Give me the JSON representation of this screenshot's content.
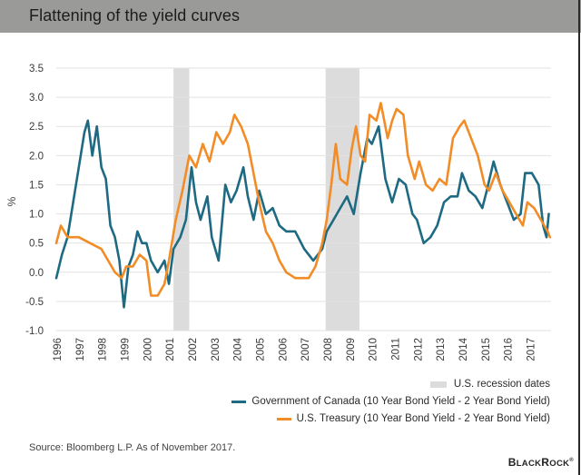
{
  "header": {
    "title": "Flattening of the yield curves"
  },
  "footer": {
    "source": "Source: Bloomberg L.P. As of November 2017.",
    "logo": "BlackRock"
  },
  "colors": {
    "canada": "#1d6a82",
    "us": "#f18c27",
    "recession": "#dcdcdc",
    "header_bg": "#9a9a99",
    "grid": "#e2e2e2"
  },
  "chart_data": {
    "type": "line",
    "title": "Flattening of the yield curves",
    "xlabel": "",
    "ylabel": "%",
    "ylim": [
      -1.0,
      3.5
    ],
    "xlim": [
      1996,
      2017.9
    ],
    "grid": true,
    "yticks": [
      "3.5",
      "3.0",
      "2.5",
      "2.0",
      "1.5",
      "1.0",
      "0.5",
      "0.0",
      "-0.5",
      "-1.0"
    ],
    "ytick_values": [
      3.5,
      3.0,
      2.5,
      2.0,
      1.5,
      1.0,
      0.5,
      0.0,
      -0.5,
      -1.0
    ],
    "xticks": [
      "1996",
      "1997",
      "1998",
      "1999",
      "2000",
      "2001",
      "2002",
      "2003",
      "2004",
      "2005",
      "2006",
      "2007",
      "2008",
      "2009",
      "2010",
      "2011",
      "2012",
      "2013",
      "2014",
      "2015",
      "2016",
      "2017"
    ],
    "legend_position": "bottom-right",
    "recessions": {
      "name": "U.S. recession dates",
      "periods": [
        [
          2001.2,
          2001.9
        ],
        [
          2007.95,
          2009.45
        ]
      ]
    },
    "series": [
      {
        "name": "Government of Canada (10 Year Bond Yield - 2 Year Bond Yield)",
        "color": "#1d6a82",
        "x": [
          1996.0,
          1996.25,
          1996.5,
          1996.75,
          1997.0,
          1997.25,
          1997.4,
          1997.6,
          1997.8,
          1998.0,
          1998.2,
          1998.4,
          1998.6,
          1998.8,
          1999.0,
          1999.2,
          1999.4,
          1999.6,
          1999.8,
          2000.0,
          2000.2,
          2000.5,
          2000.8,
          2001.0,
          2001.2,
          2001.5,
          2001.75,
          2002.0,
          2002.2,
          2002.4,
          2002.7,
          2002.9,
          2003.2,
          2003.5,
          2003.75,
          2004.0,
          2004.3,
          2004.5,
          2004.75,
          2005.0,
          2005.3,
          2005.6,
          2005.9,
          2006.2,
          2006.6,
          2007.0,
          2007.4,
          2007.8,
          2008.0,
          2008.3,
          2008.6,
          2008.9,
          2009.2,
          2009.5,
          2009.8,
          2010.0,
          2010.3,
          2010.6,
          2010.9,
          2011.2,
          2011.5,
          2011.8,
          2012.0,
          2012.3,
          2012.6,
          2012.9,
          2013.2,
          2013.5,
          2013.8,
          2014.0,
          2014.3,
          2014.6,
          2014.9,
          2015.1,
          2015.4,
          2015.7,
          2016.0,
          2016.3,
          2016.6,
          2016.8,
          2017.1,
          2017.4,
          2017.6,
          2017.75,
          2017.85
        ],
        "values": [
          -0.1,
          0.3,
          0.6,
          1.2,
          1.8,
          2.4,
          2.6,
          2.0,
          2.5,
          1.8,
          1.6,
          0.8,
          0.6,
          0.2,
          -0.6,
          0.1,
          0.3,
          0.7,
          0.5,
          0.5,
          0.2,
          0.0,
          0.2,
          -0.2,
          0.4,
          0.6,
          0.9,
          1.8,
          1.2,
          0.9,
          1.3,
          0.6,
          0.2,
          1.5,
          1.2,
          1.4,
          1.8,
          1.3,
          0.9,
          1.4,
          1.0,
          1.1,
          0.8,
          0.7,
          0.7,
          0.4,
          0.2,
          0.4,
          0.7,
          0.9,
          1.1,
          1.3,
          1.0,
          1.7,
          2.3,
          2.2,
          2.5,
          1.6,
          1.2,
          1.6,
          1.5,
          1.0,
          0.9,
          0.5,
          0.6,
          0.8,
          1.2,
          1.3,
          1.3,
          1.7,
          1.4,
          1.3,
          1.1,
          1.4,
          1.9,
          1.5,
          1.2,
          0.9,
          1.0,
          1.7,
          1.7,
          1.5,
          0.8,
          0.6,
          1.0
        ]
      },
      {
        "name": "U.S. Treasury (10 Year Bond Yield - 2 Year Bond Yield)",
        "color": "#f18c27",
        "x": [
          1996.0,
          1996.2,
          1996.5,
          1997.0,
          1997.5,
          1998.0,
          1998.3,
          1998.6,
          1998.9,
          1999.1,
          1999.4,
          1999.7,
          2000.0,
          2000.2,
          2000.5,
          2000.8,
          2001.0,
          2001.3,
          2001.6,
          2001.9,
          2002.2,
          2002.5,
          2002.8,
          2003.1,
          2003.4,
          2003.7,
          2003.9,
          2004.2,
          2004.5,
          2004.8,
          2005.0,
          2005.3,
          2005.6,
          2005.9,
          2006.2,
          2006.6,
          2006.9,
          2007.2,
          2007.5,
          2007.8,
          2008.0,
          2008.2,
          2008.4,
          2008.6,
          2008.9,
          2009.1,
          2009.3,
          2009.5,
          2009.7,
          2009.9,
          2010.2,
          2010.4,
          2010.7,
          2010.9,
          2011.1,
          2011.4,
          2011.6,
          2011.9,
          2012.1,
          2012.4,
          2012.7,
          2013.0,
          2013.3,
          2013.6,
          2013.9,
          2014.1,
          2014.4,
          2014.7,
          2015.0,
          2015.2,
          2015.5,
          2015.8,
          2016.1,
          2016.4,
          2016.7,
          2016.9,
          2017.2,
          2017.5,
          2017.8,
          2017.9
        ],
        "values": [
          0.5,
          0.8,
          0.6,
          0.6,
          0.5,
          0.4,
          0.2,
          0.0,
          -0.1,
          0.1,
          0.1,
          0.3,
          0.2,
          -0.4,
          -0.4,
          -0.2,
          0.2,
          0.9,
          1.4,
          2.0,
          1.8,
          2.2,
          1.9,
          2.4,
          2.2,
          2.4,
          2.7,
          2.5,
          2.2,
          1.6,
          1.2,
          0.7,
          0.5,
          0.2,
          0.0,
          -0.1,
          -0.1,
          -0.1,
          0.1,
          0.5,
          0.9,
          1.5,
          2.2,
          1.6,
          1.5,
          2.1,
          2.5,
          2.0,
          1.9,
          2.7,
          2.6,
          2.9,
          2.3,
          2.6,
          2.8,
          2.7,
          2.0,
          1.6,
          1.9,
          1.5,
          1.4,
          1.6,
          1.5,
          2.3,
          2.5,
          2.6,
          2.3,
          2.0,
          1.5,
          1.4,
          1.7,
          1.4,
          1.2,
          1.0,
          0.8,
          1.2,
          1.1,
          0.9,
          0.7,
          0.6
        ]
      }
    ]
  }
}
